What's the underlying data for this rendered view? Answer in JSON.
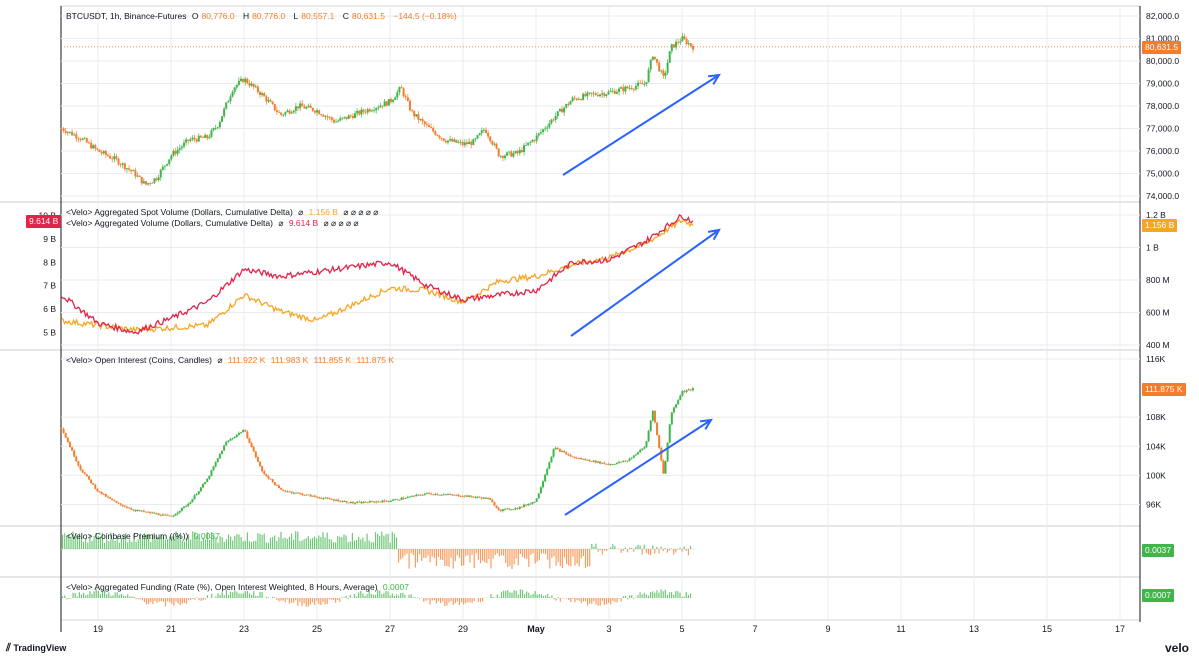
{
  "window": {
    "footer_brand": "TradingView",
    "footer_brand_right": "velo"
  },
  "colors": {
    "up": "#3fb54a",
    "down": "#f57c2a",
    "spot": "#f5a623",
    "agg": "#e0244a",
    "arrow": "#2962ff",
    "grid": "#e9ebee"
  },
  "panes": {
    "price": {
      "legend_symbol": "BTCUSDT, 1h, Binance-Futures",
      "o_label": "O",
      "o": "80,776.0",
      "h_label": "H",
      "h": "80,776.0",
      "l_label": "L",
      "l": "80,557.1",
      "c_label": "C",
      "c": "80,631.5",
      "change": "−144.5 (−0.18%)",
      "last_tag": "80,631.5"
    },
    "volume": {
      "spot_label": "<Velo> Aggregated Spot Volume (Dollars, Cumulative Delta)",
      "spot_value": "1.156 B",
      "agg_label": "<Velo> Aggregated Volume (Dollars, Cumulative Delta)",
      "agg_value": "9.614 B",
      "spot_tag": "1.156 B",
      "agg_tag": "9.614 B",
      "icons": "⌀ ⌀ ⌀ ⌀ ⌀"
    },
    "oi": {
      "label": "<Velo> Open Interest (Coins, Candles)",
      "o": "111.922 K",
      "h": "111.983 K",
      "l": "111.855 K",
      "c": "111.875 K",
      "tag": "111.875 K"
    },
    "premium": {
      "label": "<Velo> Coinbase Premium ((%))",
      "value": "0.0037",
      "tag": "0.0037"
    },
    "funding": {
      "label": "<Velo> Aggregated Funding (Rate (%), Open Interest Weighted, 8 Hours, Average)",
      "value": "0.0007",
      "tag": "0.0007"
    }
  },
  "chart_data": [
    {
      "type": "candlestick",
      "title": "BTCUSDT, 1h, Binance-Futures",
      "x_ticks": [
        "19",
        "21",
        "23",
        "25",
        "27",
        "29",
        "May",
        "3",
        "5",
        "7",
        "9",
        "11",
        "13",
        "15",
        "17"
      ],
      "y_ticks": [
        "82,000.0",
        "81,000.0",
        "80,000.0",
        "79,000.0",
        "78,000.0",
        "77,000.0",
        "76,000.0",
        "75,000.0",
        "74,000.0"
      ],
      "ylim": [
        74000,
        82000
      ],
      "close_path_x": [
        "18",
        "18.5",
        "19",
        "19.5",
        "20",
        "20.3",
        "20.6",
        "21",
        "21.5",
        "22",
        "22.3",
        "22.7",
        "23",
        "23.5",
        "24",
        "24.5",
        "25",
        "25.5",
        "26",
        "26.5",
        "27",
        "27.3",
        "27.6",
        "28",
        "28.5",
        "29",
        "29.3",
        "29.6",
        "30",
        "30.5",
        "May",
        "1.5",
        "2",
        "2.5",
        "3",
        "3.5",
        "4",
        "4.2",
        "4.5",
        "4.7",
        "5",
        "5.3"
      ],
      "close_path_y": [
        77000,
        76600,
        76000,
        75600,
        75000,
        74500,
        74800,
        75800,
        76500,
        76600,
        77200,
        78800,
        79200,
        78500,
        77600,
        78000,
        77800,
        77300,
        77600,
        77900,
        78200,
        78800,
        77700,
        77100,
        76500,
        76300,
        76400,
        77000,
        75800,
        75900,
        76600,
        77500,
        78300,
        78500,
        78600,
        78800,
        79000,
        80300,
        79200,
        80600,
        81000,
        80631.5
      ],
      "annotation": "upward trend arrow"
    },
    {
      "type": "line",
      "title": "Aggregated Volume (Cumulative Delta)",
      "series": [
        {
          "name": "<Velo> Aggregated Spot Volume (Dollars, Cumulative Delta)",
          "color": "#f5a623",
          "x": [
            "18",
            "19",
            "20",
            "21",
            "22",
            "23",
            "24",
            "25",
            "26",
            "27",
            "28",
            "29",
            "30",
            "May",
            "2",
            "3",
            "4",
            "5",
            "5.3"
          ],
          "values": [
            5.5,
            5.3,
            5.1,
            5.2,
            5.3,
            6.6,
            5.9,
            5.5,
            6.2,
            6.9,
            6.8,
            6.3,
            7.2,
            7.4,
            7.9,
            8.2,
            8.8,
            9.8,
            9.61
          ]
        },
        {
          "name": "<Velo> Aggregated Volume (Dollars, Cumulative Delta)",
          "color": "#e0244a",
          "x": [
            "18",
            "19",
            "20",
            "21",
            "22",
            "23",
            "24",
            "25",
            "26",
            "27",
            "28",
            "29",
            "30",
            "May",
            "2",
            "3",
            "4",
            "5",
            "5.3"
          ],
          "values": [
            6.6,
            5.4,
            5.0,
            5.6,
            6.3,
            7.7,
            7.4,
            7.6,
            7.8,
            8.0,
            7.0,
            6.4,
            6.6,
            6.8,
            8.0,
            8.1,
            8.9,
            10.0,
            9.75
          ]
        }
      ],
      "left_y_ticks": [
        "10 B",
        "9 B",
        "8 B",
        "7 B",
        "6 B",
        "5 B"
      ],
      "right_y_ticks": [
        "1.2 B",
        "1 B",
        "800 M",
        "600 M",
        "400 M"
      ],
      "ylim": [
        4.5,
        10.2
      ]
    },
    {
      "type": "candlestick",
      "title": "<Velo> Open Interest (Coins, Candles)",
      "close_path_x": [
        "18",
        "18.5",
        "19",
        "19.5",
        "20",
        "20.5",
        "21",
        "21.5",
        "22",
        "22.5",
        "23",
        "23.5",
        "24",
        "25",
        "26",
        "27",
        "28",
        "29",
        "29.7",
        "30",
        "30.5",
        "May",
        "1.5",
        "2",
        "3",
        "3.5",
        "4",
        "4.2",
        "4.5",
        "4.7",
        "5",
        "5.3"
      ],
      "values": [
        106.5,
        101.0,
        97.8,
        96.2,
        95.2,
        94.8,
        94.3,
        96.2,
        99.5,
        104.5,
        106.3,
        100.5,
        98.0,
        97.0,
        96.2,
        96.5,
        97.5,
        97.2,
        96.8,
        95.2,
        95.5,
        96.5,
        103.8,
        102.5,
        101.5,
        102.0,
        104.0,
        109.0,
        100.0,
        108.5,
        111.5,
        111.875
      ],
      "y_ticks": [
        "116K",
        "108K",
        "104K",
        "100K",
        "96K"
      ],
      "ylim": [
        94,
        116
      ],
      "annotation": "upward trend arrow"
    },
    {
      "type": "bar",
      "title": "<Velo> Coinbase Premium ((%))",
      "summary": "positive green bars from 18 to 27, negative orange bars from 27 to 2, mixed afterwards",
      "last_value": 0.0037
    },
    {
      "type": "bar",
      "title": "<Velo> Aggregated Funding (Rate (%), Open Interest Weighted, 8 Hours, Average)",
      "summary": "alternating small positive and negative funding rates",
      "last_value": 0.0007
    }
  ]
}
